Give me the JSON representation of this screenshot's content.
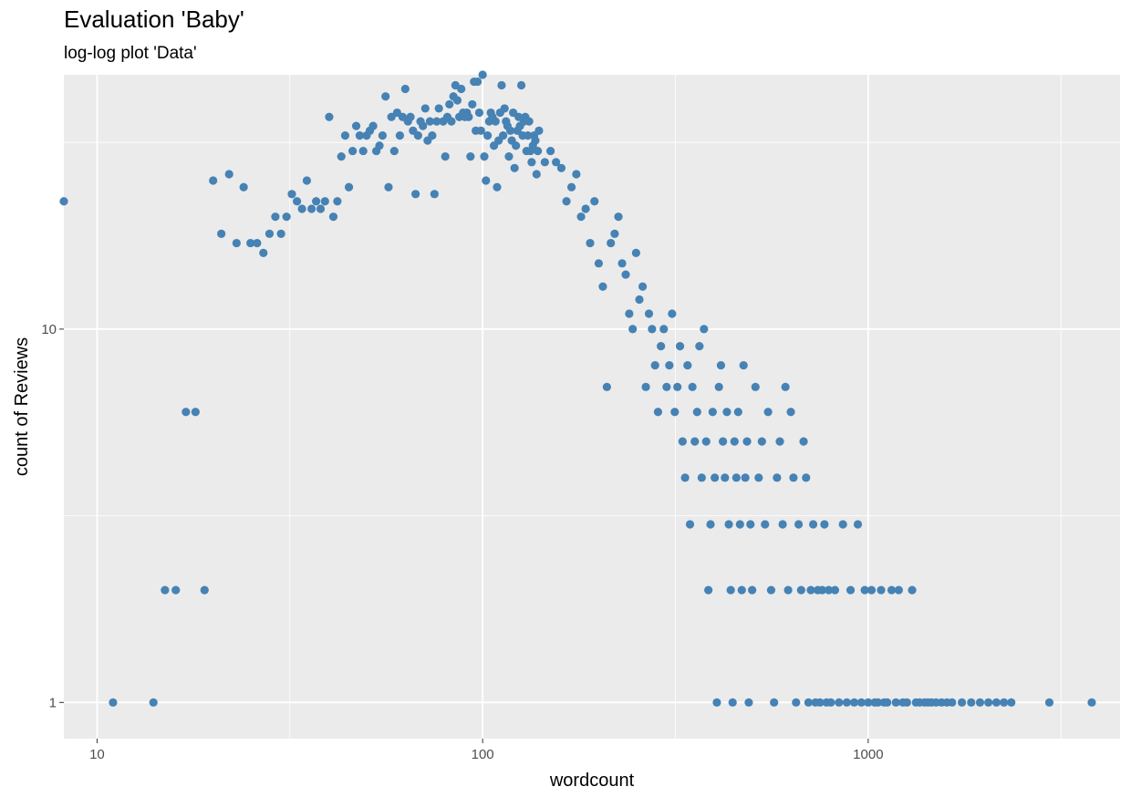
{
  "chart_data": {
    "type": "scatter",
    "title": "Evaluation 'Baby'",
    "subtitle": "log-log plot 'Data'",
    "xlabel": "wordcount",
    "ylabel": "count of Reviews",
    "x_scale": "log10",
    "y_scale": "log10",
    "xlim": [
      8.2,
      4500
    ],
    "ylim": [
      0.8,
      48
    ],
    "x_ticks": [
      10,
      100,
      1000
    ],
    "x_tick_labels": [
      "10",
      "100",
      "1000"
    ],
    "y_ticks": [
      1,
      10
    ],
    "y_tick_labels": [
      "1",
      "10"
    ],
    "grid": true,
    "point_color": "#4682b4",
    "panel_color": "#ebebeb",
    "points": [
      [
        8.2,
        22
      ],
      [
        11,
        1
      ],
      [
        14,
        1
      ],
      [
        15,
        2
      ],
      [
        16,
        2
      ],
      [
        17,
        6
      ],
      [
        18,
        6
      ],
      [
        19,
        2
      ],
      [
        20,
        25
      ],
      [
        21,
        18
      ],
      [
        22,
        26
      ],
      [
        23,
        17
      ],
      [
        24,
        24
      ],
      [
        25,
        17
      ],
      [
        26,
        17
      ],
      [
        27,
        16
      ],
      [
        28,
        18
      ],
      [
        29,
        20
      ],
      [
        30,
        18
      ],
      [
        31,
        20
      ],
      [
        32,
        23
      ],
      [
        33,
        22
      ],
      [
        34,
        21
      ],
      [
        35,
        25
      ],
      [
        36,
        21
      ],
      [
        37,
        22
      ],
      [
        38,
        21
      ],
      [
        39,
        22
      ],
      [
        40,
        37
      ],
      [
        41,
        20
      ],
      [
        42,
        22
      ],
      [
        43,
        29
      ],
      [
        44,
        33
      ],
      [
        45,
        24
      ],
      [
        46,
        30
      ],
      [
        47,
        35
      ],
      [
        48,
        33
      ],
      [
        49,
        30
      ],
      [
        50,
        33
      ],
      [
        51,
        34
      ],
      [
        52,
        35
      ],
      [
        53,
        30
      ],
      [
        54,
        31
      ],
      [
        55,
        33
      ],
      [
        56,
        42
      ],
      [
        57,
        24
      ],
      [
        58,
        37
      ],
      [
        59,
        30
      ],
      [
        60,
        38
      ],
      [
        61,
        33
      ],
      [
        62,
        37
      ],
      [
        63,
        44
      ],
      [
        64,
        36
      ],
      [
        65,
        37
      ],
      [
        66,
        34
      ],
      [
        67,
        23
      ],
      [
        68,
        33
      ],
      [
        69,
        36
      ],
      [
        70,
        35
      ],
      [
        71,
        39
      ],
      [
        72,
        32
      ],
      [
        73,
        36
      ],
      [
        74,
        33
      ],
      [
        75,
        23
      ],
      [
        76,
        36
      ],
      [
        77,
        39
      ],
      [
        78,
        50
      ],
      [
        79,
        36
      ],
      [
        80,
        29
      ],
      [
        81,
        37
      ],
      [
        82,
        40
      ],
      [
        83,
        36
      ],
      [
        84,
        42
      ],
      [
        85,
        45
      ],
      [
        86,
        41
      ],
      [
        87,
        37
      ],
      [
        88,
        44
      ],
      [
        89,
        38
      ],
      [
        90,
        37
      ],
      [
        91,
        38
      ],
      [
        92,
        37
      ],
      [
        93,
        29
      ],
      [
        94,
        40
      ],
      [
        95,
        46
      ],
      [
        96,
        34
      ],
      [
        97,
        46
      ],
      [
        98,
        38
      ],
      [
        99,
        34
      ],
      [
        100,
        48
      ],
      [
        101,
        29
      ],
      [
        102,
        25
      ],
      [
        103,
        33
      ],
      [
        104,
        36
      ],
      [
        105,
        38
      ],
      [
        106,
        37
      ],
      [
        107,
        31
      ],
      [
        108,
        36
      ],
      [
        109,
        24
      ],
      [
        110,
        32
      ],
      [
        111,
        38
      ],
      [
        112,
        45
      ],
      [
        113,
        33
      ],
      [
        114,
        39
      ],
      [
        115,
        36
      ],
      [
        116,
        35
      ],
      [
        117,
        29
      ],
      [
        118,
        34
      ],
      [
        119,
        32
      ],
      [
        120,
        38
      ],
      [
        121,
        27
      ],
      [
        122,
        31
      ],
      [
        123,
        34
      ],
      [
        124,
        37
      ],
      [
        125,
        35
      ],
      [
        126,
        45
      ],
      [
        127,
        33
      ],
      [
        128,
        36
      ],
      [
        129,
        37
      ],
      [
        130,
        30
      ],
      [
        131,
        33
      ],
      [
        132,
        36
      ],
      [
        133,
        30
      ],
      [
        134,
        28
      ],
      [
        135,
        31
      ],
      [
        136,
        33
      ],
      [
        137,
        32
      ],
      [
        138,
        26
      ],
      [
        139,
        30
      ],
      [
        140,
        34
      ],
      [
        145,
        28
      ],
      [
        150,
        30
      ],
      [
        155,
        28
      ],
      [
        160,
        27
      ],
      [
        165,
        22
      ],
      [
        170,
        24
      ],
      [
        175,
        26
      ],
      [
        180,
        20
      ],
      [
        185,
        21
      ],
      [
        190,
        17
      ],
      [
        195,
        22
      ],
      [
        200,
        15
      ],
      [
        205,
        13
      ],
      [
        210,
        7
      ],
      [
        215,
        17
      ],
      [
        220,
        18
      ],
      [
        225,
        20
      ],
      [
        230,
        15
      ],
      [
        235,
        14
      ],
      [
        240,
        11
      ],
      [
        245,
        10
      ],
      [
        250,
        16
      ],
      [
        255,
        12
      ],
      [
        260,
        13
      ],
      [
        265,
        7
      ],
      [
        270,
        11
      ],
      [
        275,
        10
      ],
      [
        280,
        8
      ],
      [
        285,
        6
      ],
      [
        290,
        9
      ],
      [
        295,
        10
      ],
      [
        300,
        7
      ],
      [
        305,
        8
      ],
      [
        310,
        11
      ],
      [
        315,
        6
      ],
      [
        320,
        7
      ],
      [
        325,
        9
      ],
      [
        330,
        5
      ],
      [
        335,
        4
      ],
      [
        340,
        8
      ],
      [
        345,
        3
      ],
      [
        350,
        7
      ],
      [
        355,
        5
      ],
      [
        360,
        6
      ],
      [
        365,
        9
      ],
      [
        370,
        4
      ],
      [
        375,
        10
      ],
      [
        380,
        5
      ],
      [
        385,
        2
      ],
      [
        390,
        3
      ],
      [
        395,
        6
      ],
      [
        400,
        4
      ],
      [
        405,
        1
      ],
      [
        410,
        7
      ],
      [
        415,
        8
      ],
      [
        420,
        5
      ],
      [
        425,
        4
      ],
      [
        430,
        6
      ],
      [
        435,
        3
      ],
      [
        440,
        2
      ],
      [
        445,
        1
      ],
      [
        450,
        5
      ],
      [
        455,
        4
      ],
      [
        460,
        6
      ],
      [
        465,
        3
      ],
      [
        470,
        2
      ],
      [
        475,
        8
      ],
      [
        480,
        4
      ],
      [
        485,
        5
      ],
      [
        490,
        1
      ],
      [
        495,
        3
      ],
      [
        500,
        2
      ],
      [
        510,
        7
      ],
      [
        520,
        4
      ],
      [
        530,
        5
      ],
      [
        540,
        3
      ],
      [
        550,
        6
      ],
      [
        560,
        2
      ],
      [
        570,
        1
      ],
      [
        580,
        4
      ],
      [
        590,
        5
      ],
      [
        600,
        3
      ],
      [
        610,
        7
      ],
      [
        620,
        2
      ],
      [
        630,
        6
      ],
      [
        640,
        4
      ],
      [
        650,
        1
      ],
      [
        660,
        3
      ],
      [
        670,
        2
      ],
      [
        680,
        5
      ],
      [
        690,
        4
      ],
      [
        700,
        1
      ],
      [
        710,
        2
      ],
      [
        720,
        3
      ],
      [
        730,
        1
      ],
      [
        740,
        2
      ],
      [
        750,
        1
      ],
      [
        760,
        2
      ],
      [
        770,
        3
      ],
      [
        780,
        1
      ],
      [
        790,
        2
      ],
      [
        800,
        1
      ],
      [
        820,
        2
      ],
      [
        840,
        1
      ],
      [
        860,
        3
      ],
      [
        880,
        1
      ],
      [
        900,
        2
      ],
      [
        920,
        1
      ],
      [
        940,
        3
      ],
      [
        960,
        1
      ],
      [
        980,
        2
      ],
      [
        1000,
        1
      ],
      [
        1020,
        2
      ],
      [
        1040,
        1
      ],
      [
        1060,
        1
      ],
      [
        1080,
        2
      ],
      [
        1100,
        1
      ],
      [
        1120,
        1
      ],
      [
        1150,
        2
      ],
      [
        1180,
        1
      ],
      [
        1200,
        2
      ],
      [
        1230,
        1
      ],
      [
        1260,
        1
      ],
      [
        1300,
        2
      ],
      [
        1330,
        1
      ],
      [
        1360,
        1
      ],
      [
        1400,
        1
      ],
      [
        1430,
        1
      ],
      [
        1460,
        1
      ],
      [
        1500,
        1
      ],
      [
        1550,
        1
      ],
      [
        1600,
        1
      ],
      [
        1650,
        1
      ],
      [
        1750,
        1
      ],
      [
        1850,
        1
      ],
      [
        1950,
        1
      ],
      [
        2050,
        1
      ],
      [
        2150,
        1
      ],
      [
        2250,
        1
      ],
      [
        2350,
        1
      ],
      [
        2950,
        1
      ],
      [
        3800,
        1
      ]
    ]
  }
}
